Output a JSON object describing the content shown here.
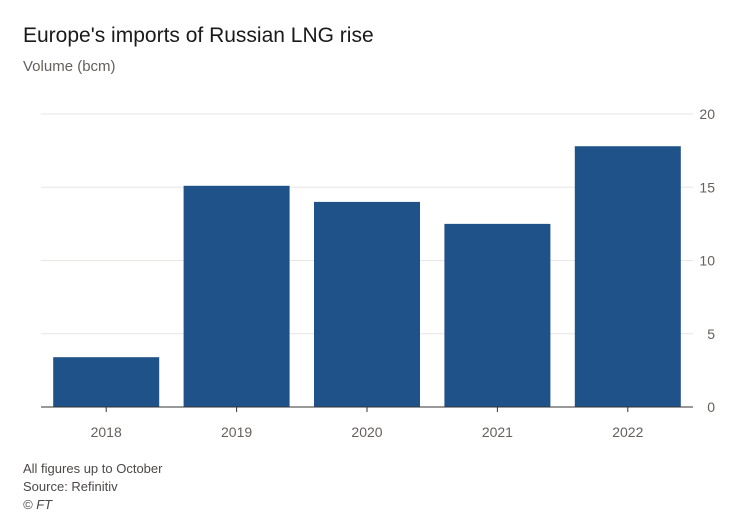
{
  "title": "Europe's imports of Russian LNG rise",
  "subtitle": "Volume (bcm)",
  "footnote": "All figures up to October",
  "source": "Source: Refinitiv",
  "copyright": "© FT",
  "colors": {
    "bar": "#1f5289",
    "grid": "#e8e6e3",
    "axis": "#333333"
  },
  "chart_data": {
    "type": "bar",
    "title": "Europe's imports of Russian LNG rise",
    "xlabel": "",
    "ylabel": "Volume (bcm)",
    "categories": [
      "2018",
      "2019",
      "2020",
      "2021",
      "2022"
    ],
    "values": [
      3.4,
      15.1,
      14.0,
      12.5,
      17.8
    ],
    "ylim": [
      0,
      20
    ],
    "yticks": [
      0,
      5,
      10,
      15,
      20
    ],
    "y_axis_side": "right",
    "grid": true
  }
}
